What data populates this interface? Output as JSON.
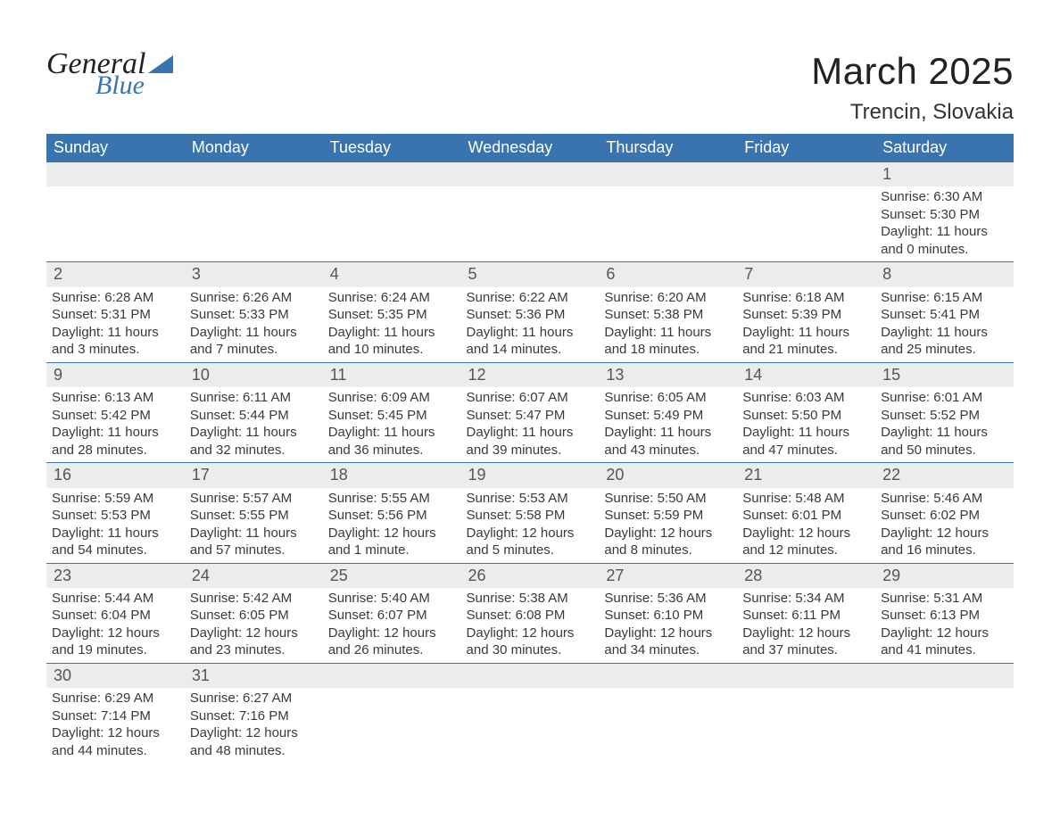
{
  "logo": {
    "line1": "General",
    "line2": "Blue"
  },
  "header": {
    "title": "March 2025",
    "location": "Trencin, Slovakia"
  },
  "columns": [
    "Sunday",
    "Monday",
    "Tuesday",
    "Wednesday",
    "Thursday",
    "Friday",
    "Saturday"
  ],
  "style": {
    "header_bg": "#3a74af",
    "header_fg": "#ffffff",
    "row_border": "#3a74af",
    "daynum_bg": "#ececec",
    "text_color": "#3a3a3a",
    "title_fontsize": 42,
    "location_fontsize": 24,
    "col_header_fontsize": 18,
    "body_fontsize": 15
  },
  "weeks": [
    [
      null,
      null,
      null,
      null,
      null,
      null,
      {
        "n": "1",
        "sunrise": "Sunrise: 6:30 AM",
        "sunset": "Sunset: 5:30 PM",
        "day1": "Daylight: 11 hours",
        "day2": "and 0 minutes."
      }
    ],
    [
      {
        "n": "2",
        "sunrise": "Sunrise: 6:28 AM",
        "sunset": "Sunset: 5:31 PM",
        "day1": "Daylight: 11 hours",
        "day2": "and 3 minutes."
      },
      {
        "n": "3",
        "sunrise": "Sunrise: 6:26 AM",
        "sunset": "Sunset: 5:33 PM",
        "day1": "Daylight: 11 hours",
        "day2": "and 7 minutes."
      },
      {
        "n": "4",
        "sunrise": "Sunrise: 6:24 AM",
        "sunset": "Sunset: 5:35 PM",
        "day1": "Daylight: 11 hours",
        "day2": "and 10 minutes."
      },
      {
        "n": "5",
        "sunrise": "Sunrise: 6:22 AM",
        "sunset": "Sunset: 5:36 PM",
        "day1": "Daylight: 11 hours",
        "day2": "and 14 minutes."
      },
      {
        "n": "6",
        "sunrise": "Sunrise: 6:20 AM",
        "sunset": "Sunset: 5:38 PM",
        "day1": "Daylight: 11 hours",
        "day2": "and 18 minutes."
      },
      {
        "n": "7",
        "sunrise": "Sunrise: 6:18 AM",
        "sunset": "Sunset: 5:39 PM",
        "day1": "Daylight: 11 hours",
        "day2": "and 21 minutes."
      },
      {
        "n": "8",
        "sunrise": "Sunrise: 6:15 AM",
        "sunset": "Sunset: 5:41 PM",
        "day1": "Daylight: 11 hours",
        "day2": "and 25 minutes."
      }
    ],
    [
      {
        "n": "9",
        "sunrise": "Sunrise: 6:13 AM",
        "sunset": "Sunset: 5:42 PM",
        "day1": "Daylight: 11 hours",
        "day2": "and 28 minutes."
      },
      {
        "n": "10",
        "sunrise": "Sunrise: 6:11 AM",
        "sunset": "Sunset: 5:44 PM",
        "day1": "Daylight: 11 hours",
        "day2": "and 32 minutes."
      },
      {
        "n": "11",
        "sunrise": "Sunrise: 6:09 AM",
        "sunset": "Sunset: 5:45 PM",
        "day1": "Daylight: 11 hours",
        "day2": "and 36 minutes."
      },
      {
        "n": "12",
        "sunrise": "Sunrise: 6:07 AM",
        "sunset": "Sunset: 5:47 PM",
        "day1": "Daylight: 11 hours",
        "day2": "and 39 minutes."
      },
      {
        "n": "13",
        "sunrise": "Sunrise: 6:05 AM",
        "sunset": "Sunset: 5:49 PM",
        "day1": "Daylight: 11 hours",
        "day2": "and 43 minutes."
      },
      {
        "n": "14",
        "sunrise": "Sunrise: 6:03 AM",
        "sunset": "Sunset: 5:50 PM",
        "day1": "Daylight: 11 hours",
        "day2": "and 47 minutes."
      },
      {
        "n": "15",
        "sunrise": "Sunrise: 6:01 AM",
        "sunset": "Sunset: 5:52 PM",
        "day1": "Daylight: 11 hours",
        "day2": "and 50 minutes."
      }
    ],
    [
      {
        "n": "16",
        "sunrise": "Sunrise: 5:59 AM",
        "sunset": "Sunset: 5:53 PM",
        "day1": "Daylight: 11 hours",
        "day2": "and 54 minutes."
      },
      {
        "n": "17",
        "sunrise": "Sunrise: 5:57 AM",
        "sunset": "Sunset: 5:55 PM",
        "day1": "Daylight: 11 hours",
        "day2": "and 57 minutes."
      },
      {
        "n": "18",
        "sunrise": "Sunrise: 5:55 AM",
        "sunset": "Sunset: 5:56 PM",
        "day1": "Daylight: 12 hours",
        "day2": "and 1 minute."
      },
      {
        "n": "19",
        "sunrise": "Sunrise: 5:53 AM",
        "sunset": "Sunset: 5:58 PM",
        "day1": "Daylight: 12 hours",
        "day2": "and 5 minutes."
      },
      {
        "n": "20",
        "sunrise": "Sunrise: 5:50 AM",
        "sunset": "Sunset: 5:59 PM",
        "day1": "Daylight: 12 hours",
        "day2": "and 8 minutes."
      },
      {
        "n": "21",
        "sunrise": "Sunrise: 5:48 AM",
        "sunset": "Sunset: 6:01 PM",
        "day1": "Daylight: 12 hours",
        "day2": "and 12 minutes."
      },
      {
        "n": "22",
        "sunrise": "Sunrise: 5:46 AM",
        "sunset": "Sunset: 6:02 PM",
        "day1": "Daylight: 12 hours",
        "day2": "and 16 minutes."
      }
    ],
    [
      {
        "n": "23",
        "sunrise": "Sunrise: 5:44 AM",
        "sunset": "Sunset: 6:04 PM",
        "day1": "Daylight: 12 hours",
        "day2": "and 19 minutes."
      },
      {
        "n": "24",
        "sunrise": "Sunrise: 5:42 AM",
        "sunset": "Sunset: 6:05 PM",
        "day1": "Daylight: 12 hours",
        "day2": "and 23 minutes."
      },
      {
        "n": "25",
        "sunrise": "Sunrise: 5:40 AM",
        "sunset": "Sunset: 6:07 PM",
        "day1": "Daylight: 12 hours",
        "day2": "and 26 minutes."
      },
      {
        "n": "26",
        "sunrise": "Sunrise: 5:38 AM",
        "sunset": "Sunset: 6:08 PM",
        "day1": "Daylight: 12 hours",
        "day2": "and 30 minutes."
      },
      {
        "n": "27",
        "sunrise": "Sunrise: 5:36 AM",
        "sunset": "Sunset: 6:10 PM",
        "day1": "Daylight: 12 hours",
        "day2": "and 34 minutes."
      },
      {
        "n": "28",
        "sunrise": "Sunrise: 5:34 AM",
        "sunset": "Sunset: 6:11 PM",
        "day1": "Daylight: 12 hours",
        "day2": "and 37 minutes."
      },
      {
        "n": "29",
        "sunrise": "Sunrise: 5:31 AM",
        "sunset": "Sunset: 6:13 PM",
        "day1": "Daylight: 12 hours",
        "day2": "and 41 minutes."
      }
    ],
    [
      {
        "n": "30",
        "sunrise": "Sunrise: 6:29 AM",
        "sunset": "Sunset: 7:14 PM",
        "day1": "Daylight: 12 hours",
        "day2": "and 44 minutes."
      },
      {
        "n": "31",
        "sunrise": "Sunrise: 6:27 AM",
        "sunset": "Sunset: 7:16 PM",
        "day1": "Daylight: 12 hours",
        "day2": "and 48 minutes."
      },
      null,
      null,
      null,
      null,
      null
    ]
  ]
}
